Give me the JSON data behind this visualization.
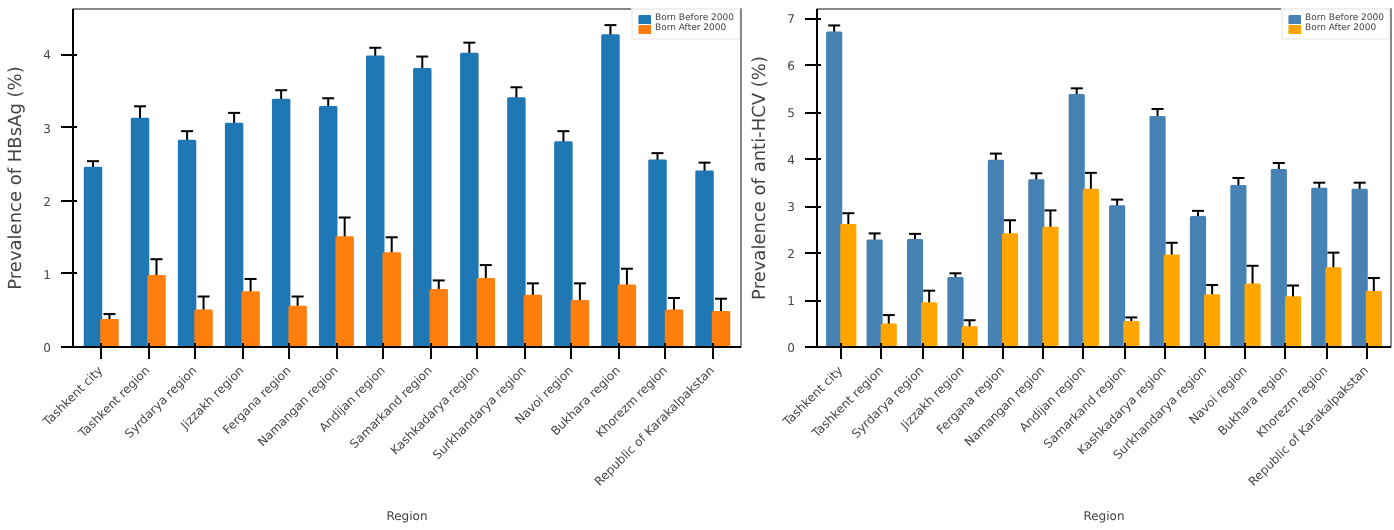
{
  "chart_data": [
    {
      "type": "bar",
      "xlabel": "Region",
      "ylabel": "Prevalence of HBsAg (%)",
      "categories": [
        "Tashkent city",
        "Tashkent region",
        "Syrdarya region",
        "Jizzakh region",
        "Fergana region",
        "Namangan region",
        "Andijan region",
        "Samarkand region",
        "Kashkadarya region",
        "Surkhandarya region",
        "Navoi region",
        "Bukhara region",
        "Khorezm region",
        "Republic of Karakalpakstan"
      ],
      "series": [
        {
          "name": "Born Before 2000",
          "color": "#1f77b4",
          "values": [
            2.45,
            3.12,
            2.82,
            3.05,
            3.38,
            3.28,
            3.97,
            3.8,
            4.01,
            3.4,
            2.8,
            4.26,
            2.55,
            2.4
          ],
          "errors": [
            0.09,
            0.17,
            0.13,
            0.15,
            0.13,
            0.12,
            0.12,
            0.17,
            0.15,
            0.15,
            0.15,
            0.14,
            0.1,
            0.12
          ]
        },
        {
          "name": "Born After 2000",
          "color": "#ff7f0e",
          "values": [
            0.37,
            0.97,
            0.5,
            0.75,
            0.55,
            1.5,
            1.28,
            0.78,
            0.93,
            0.7,
            0.63,
            0.84,
            0.5,
            0.48
          ],
          "errors": [
            0.08,
            0.23,
            0.19,
            0.18,
            0.14,
            0.27,
            0.22,
            0.13,
            0.19,
            0.17,
            0.24,
            0.23,
            0.17,
            0.18
          ]
        }
      ],
      "ylim": [
        0,
        4.62
      ],
      "yticks": [
        0,
        1,
        2,
        3,
        4
      ],
      "grid": false,
      "legend": "top right"
    },
    {
      "type": "bar",
      "xlabel": "Region",
      "ylabel": "Prevalence of anti-HCV (%)",
      "categories": [
        "Tashkent city",
        "Tashkent region",
        "Syrdarya region",
        "Jizzakh region",
        "Fergana region",
        "Namangan region",
        "Andijan region",
        "Samarkand region",
        "Kashkadarya region",
        "Surkhandarya region",
        "Navoi region",
        "Bukhara region",
        "Khorezm region",
        "Republic of Karakalpakstan"
      ],
      "series": [
        {
          "name": "Born Before 2000",
          "color": "#4682b4",
          "values": [
            6.7,
            2.27,
            2.28,
            1.47,
            3.97,
            3.55,
            5.37,
            3.0,
            4.9,
            2.77,
            3.43,
            3.77,
            3.37,
            3.35
          ],
          "errors": [
            0.15,
            0.15,
            0.13,
            0.1,
            0.15,
            0.15,
            0.14,
            0.14,
            0.17,
            0.13,
            0.17,
            0.15,
            0.13,
            0.15
          ]
        },
        {
          "name": "Born After 2000",
          "color": "#ffa500",
          "values": [
            2.6,
            0.48,
            0.93,
            0.42,
            2.4,
            2.54,
            3.35,
            0.53,
            1.95,
            1.1,
            1.33,
            1.06,
            1.68,
            1.17
          ],
          "errors": [
            0.25,
            0.2,
            0.27,
            0.15,
            0.3,
            0.37,
            0.36,
            0.1,
            0.27,
            0.22,
            0.4,
            0.25,
            0.33,
            0.3
          ]
        }
      ],
      "ylim": [
        0,
        7.2
      ],
      "yticks": [
        0,
        1,
        2,
        3,
        4,
        5,
        6,
        7
      ],
      "grid": false,
      "legend": "top right"
    }
  ]
}
